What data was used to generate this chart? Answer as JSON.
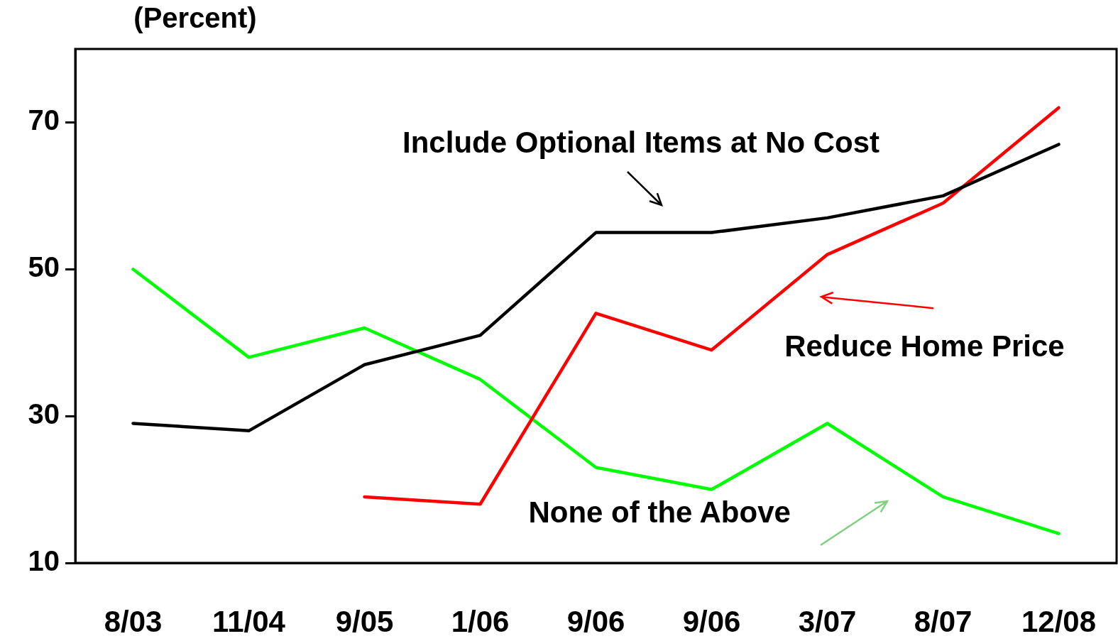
{
  "chart_data": {
    "type": "line",
    "ylabel": "(Percent)",
    "categories": [
      "8/03",
      "11/04",
      "9/05",
      "1/06",
      "9/06",
      "9/06",
      "3/07",
      "8/07",
      "12/08"
    ],
    "series": [
      {
        "name": "Include Optional Items at No Cost",
        "color": "#000000",
        "values": [
          29,
          28,
          37,
          41,
          55,
          55,
          57,
          60,
          67
        ]
      },
      {
        "name": "Reduce Home Price",
        "color": "#ff0000",
        "values": [
          null,
          null,
          19,
          18,
          44,
          39,
          52,
          59,
          72
        ]
      },
      {
        "name": "None of the Above",
        "color": "#00ff00",
        "values": [
          50,
          38,
          42,
          35,
          23,
          20,
          29,
          19,
          14
        ]
      }
    ],
    "ylim": [
      10,
      80
    ],
    "yticks": [
      10,
      30,
      50,
      70
    ],
    "grid": false,
    "legend": false,
    "marker": "none",
    "line_style": "solid"
  }
}
